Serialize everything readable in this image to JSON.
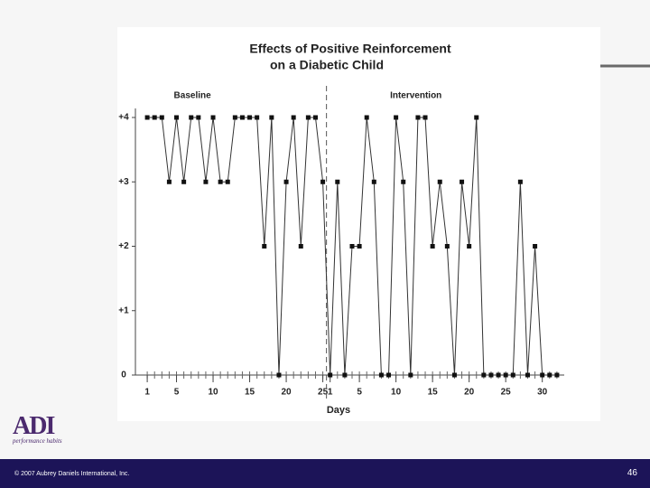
{
  "chart_data": {
    "type": "line",
    "title": [
      "Effects of Positive Reinforcement",
      "on a Diabetic Child"
    ],
    "x_label": "Days",
    "phases": [
      {
        "name": "Baseline",
        "start": 1
      },
      {
        "name": "Intervention",
        "start": 26
      }
    ],
    "phase_change": 25.5,
    "x": [
      1,
      2,
      3,
      4,
      5,
      6,
      7,
      8,
      9,
      10,
      11,
      12,
      13,
      14,
      15,
      16,
      17,
      18,
      19,
      20,
      21,
      22,
      23,
      24,
      25,
      26,
      27,
      28,
      29,
      30,
      31,
      32,
      33,
      34,
      35,
      36,
      37,
      38,
      39,
      40,
      41,
      42,
      43,
      44,
      45,
      46,
      47,
      48,
      49,
      50,
      51,
      52,
      53,
      54,
      55,
      56,
      57
    ],
    "series": [
      {
        "color": "#333333",
        "values": [
          4,
          4,
          4,
          3,
          4,
          3,
          4,
          4,
          3,
          4,
          3,
          3,
          4,
          4,
          4,
          4,
          2,
          4,
          0,
          3,
          4,
          2,
          4,
          4,
          3,
          0,
          3,
          0,
          2,
          2,
          4,
          3,
          0,
          0,
          4,
          3,
          0,
          4,
          4,
          2,
          3,
          2,
          0,
          3,
          2,
          4,
          0,
          0,
          0,
          0,
          0,
          3,
          0,
          2,
          0,
          0,
          0
        ]
      }
    ],
    "xlim": [
      0,
      58
    ],
    "xticks": [
      1,
      5,
      10,
      15,
      20,
      25,
      {
        "value": 26,
        "label": "1"
      },
      {
        "value": 30,
        "label": "5"
      },
      {
        "value": 35,
        "label": "10"
      },
      {
        "value": 40,
        "label": "15"
      },
      {
        "value": 45,
        "label": "20"
      },
      {
        "value": 50,
        "label": "25"
      },
      {
        "value": 55,
        "label": "30"
      }
    ],
    "ylim": [
      0,
      4
    ],
    "yticks": [
      0,
      {
        "value": 1,
        "label": "+1"
      },
      {
        "value": 2,
        "label": "+2"
      },
      {
        "value": 3,
        "label": "+3"
      },
      {
        "value": 4,
        "label": "+4"
      }
    ],
    "grid": false
  },
  "logo": {
    "text": "ADI",
    "tagline": "performance habits"
  },
  "footer": {
    "copyright": "© 2007 Aubrey Daniels International, Inc.",
    "page_number": 46
  }
}
